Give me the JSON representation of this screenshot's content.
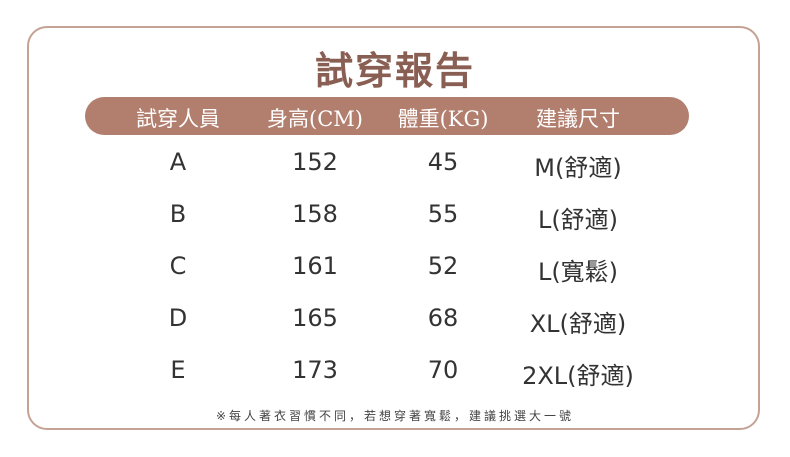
{
  "title": "試穿報告",
  "headers": [
    "試穿人員",
    "身高(CM)",
    "體重(KG)",
    "建議尺寸"
  ],
  "rows": [
    [
      "A",
      "152",
      "45",
      "M(舒適)"
    ],
    [
      "B",
      "158",
      "55",
      "L(舒適)"
    ],
    [
      "C",
      "161",
      "52",
      "L(寬鬆)"
    ],
    [
      "D",
      "165",
      "68",
      "XL(舒適)"
    ],
    [
      "E",
      "173",
      "70",
      "2XL(舒適)"
    ]
  ],
  "note": "※每人著衣習慣不同，若想穿著寬鬆，建議挑選大一號",
  "colors": {
    "title": "#8a5f53",
    "header_bar": "#b27f6e",
    "border": "#c4a394"
  }
}
